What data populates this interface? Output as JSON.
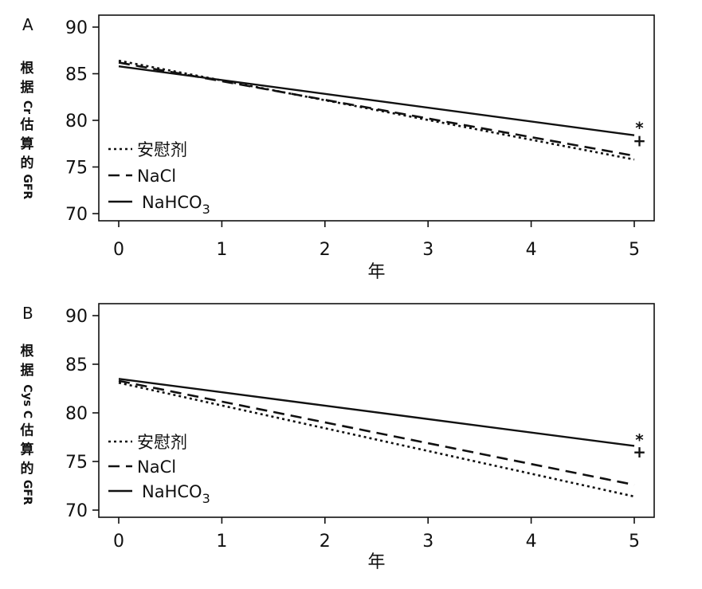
{
  "chart_data": [
    {
      "type": "line",
      "panel": "A",
      "xlabel": "年",
      "ylabel": "根据Cr估算的GFR",
      "ylim": [
        70,
        90
      ],
      "xlim": [
        0,
        5
      ],
      "x_ticks": [
        "0",
        "1",
        "2",
        "3",
        "4",
        "5"
      ],
      "y_ticks": [
        "70",
        "75",
        "80",
        "85",
        "90"
      ],
      "legend_position": "bottom-left",
      "series": [
        {
          "name": "安慰剂",
          "style": "dotted",
          "x": [
            0,
            5
          ],
          "values": [
            86.4,
            75.8
          ]
        },
        {
          "name": "NaCl",
          "style": "dashed",
          "x": [
            0,
            5
          ],
          "values": [
            86.2,
            76.2
          ]
        },
        {
          "name": "NaHCO",
          "subscript": "3",
          "style": "solid",
          "x": [
            0,
            5
          ],
          "values": [
            85.8,
            78.4
          ]
        }
      ],
      "annotations": [
        {
          "text": "*",
          "x": 5.05,
          "y": 79.2
        },
        {
          "text": "+",
          "x": 5.05,
          "y": 77.8
        }
      ]
    },
    {
      "type": "line",
      "panel": "B",
      "xlabel": "年",
      "ylabel": "根据Cys C估算的GFR",
      "ylim": [
        70,
        90
      ],
      "xlim": [
        0,
        5
      ],
      "x_ticks": [
        "0",
        "1",
        "2",
        "3",
        "4",
        "5"
      ],
      "y_ticks": [
        "70",
        "75",
        "80",
        "85",
        "90"
      ],
      "legend_position": "bottom-left",
      "series": [
        {
          "name": "安慰剂",
          "style": "dotted",
          "x": [
            0,
            5
          ],
          "values": [
            83.1,
            71.4
          ]
        },
        {
          "name": "NaCl",
          "style": "dashed",
          "x": [
            0,
            5
          ],
          "values": [
            83.3,
            72.6
          ]
        },
        {
          "name": "NaHCO",
          "subscript": "3",
          "style": "solid",
          "x": [
            0,
            5
          ],
          "values": [
            83.5,
            76.6
          ]
        }
      ],
      "annotations": [
        {
          "text": "*",
          "x": 5.05,
          "y": 77.2
        },
        {
          "text": "+",
          "x": 5.05,
          "y": 76.0
        }
      ]
    }
  ]
}
